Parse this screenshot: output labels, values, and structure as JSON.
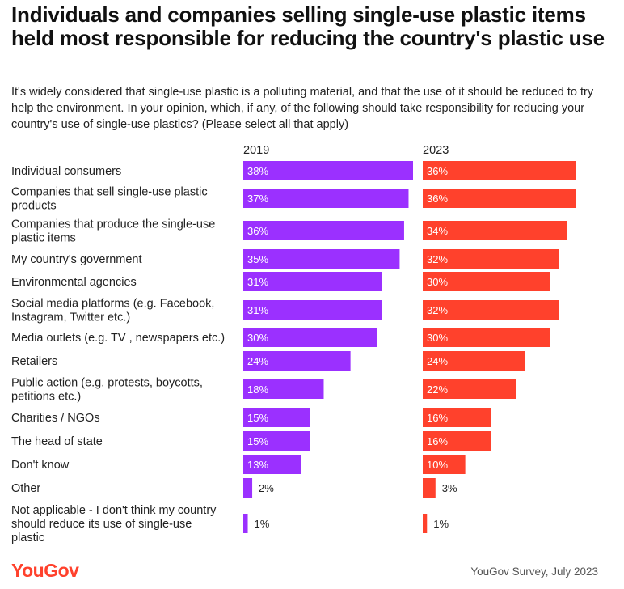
{
  "title": "Individuals and companies selling single-use plastic items held most responsible for reducing the country's plastic use",
  "subtitle": "It's widely considered that single-use plastic is a polluting material, and that the use of it should be reduced to try help the environment. In your opinion, which, if any, of the following should take responsibility for reducing your country's use of single-use plastics? (Please select all that apply)",
  "footer": {
    "logo": "YouGov",
    "source": "YouGov Survey, July 2023"
  },
  "colors": {
    "series_2019": "#9b30ff",
    "series_2023": "#ff412c"
  },
  "chart_data": {
    "type": "bar",
    "orientation": "horizontal",
    "categories": [
      [
        "Individual consumers"
      ],
      [
        "Companies that sell single-use plastic",
        "products"
      ],
      [
        "Companies that produce the single-use",
        "plastic items"
      ],
      [
        "My country's government"
      ],
      [
        "Environmental agencies"
      ],
      [
        "Social media platforms (e.g. Facebook,",
        "Instagram, Twitter etc.)"
      ],
      [
        "Media outlets (e.g. TV , newspapers etc.)"
      ],
      [
        "Retailers"
      ],
      [
        "Public action (e.g. protests, boycotts,",
        "petitions etc.)"
      ],
      [
        "Charities / NGOs"
      ],
      [
        "The head of state"
      ],
      [
        "Don't know"
      ],
      [
        "Other"
      ],
      [
        "Not applicable - I don't think my country",
        "should reduce its use of single-use",
        "plastic"
      ]
    ],
    "series": [
      {
        "name": "2019",
        "values": [
          38,
          37,
          36,
          35,
          31,
          31,
          30,
          24,
          18,
          15,
          15,
          13,
          2,
          1
        ]
      },
      {
        "name": "2023",
        "values": [
          36,
          36,
          34,
          32,
          30,
          32,
          30,
          24,
          22,
          16,
          16,
          10,
          3,
          1
        ]
      }
    ],
    "value_suffix": "%",
    "xlim": [
      0,
      38
    ],
    "grid": false
  }
}
